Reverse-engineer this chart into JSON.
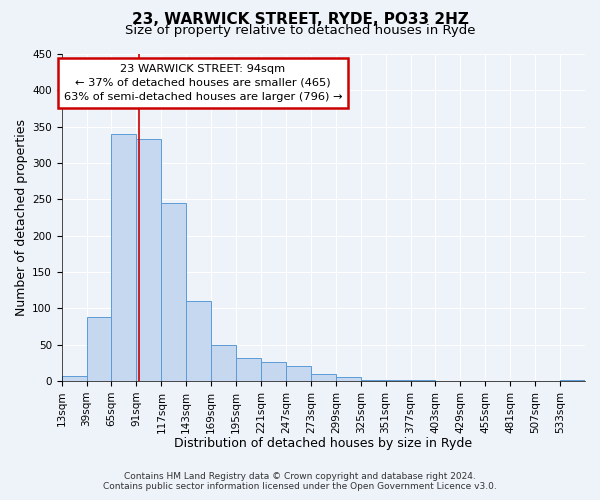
{
  "title": "23, WARWICK STREET, RYDE, PO33 2HZ",
  "subtitle": "Size of property relative to detached houses in Ryde",
  "xlabel": "Distribution of detached houses by size in Ryde",
  "ylabel": "Number of detached properties",
  "footer_line1": "Contains HM Land Registry data © Crown copyright and database right 2024.",
  "footer_line2": "Contains public sector information licensed under the Open Government Licence v3.0.",
  "annotation_line1": "23 WARWICK STREET: 94sqm",
  "annotation_line2": "← 37% of detached houses are smaller (465)",
  "annotation_line3": "63% of semi-detached houses are larger (796) →",
  "bar_color": "#c5d8f0",
  "bar_edge_color": "#5b9bd5",
  "marker_line_color": "#cc0000",
  "marker_value": 94,
  "bin_edges": [
    13,
    39,
    65,
    91,
    117,
    143,
    169,
    195,
    221,
    247,
    273,
    299,
    325,
    351,
    377,
    403,
    429,
    455,
    481,
    507,
    533,
    559
  ],
  "bar_heights": [
    7,
    88,
    340,
    333,
    245,
    110,
    49,
    32,
    26,
    21,
    10,
    5,
    1,
    1,
    1,
    0,
    0,
    0,
    0,
    0,
    1
  ],
  "ylim": [
    0,
    450
  ],
  "yticks": [
    0,
    50,
    100,
    150,
    200,
    250,
    300,
    350,
    400,
    450
  ],
  "background_color": "#eef2f9",
  "grid_color": "#ffffff",
  "title_fontsize": 11,
  "subtitle_fontsize": 9.5,
  "axis_label_fontsize": 9,
  "tick_fontsize": 7.5,
  "footer_fontsize": 6.5
}
